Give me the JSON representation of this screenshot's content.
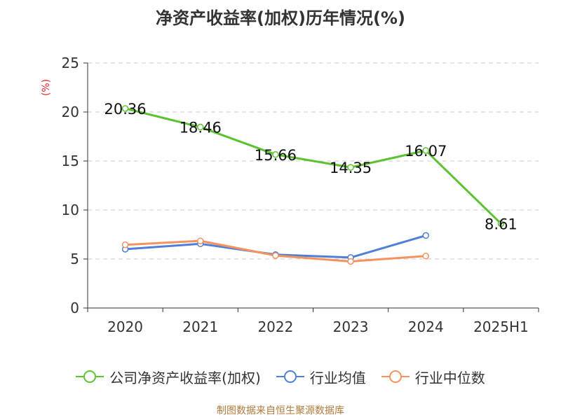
{
  "chart_data": {
    "type": "line",
    "title": "净资产收益率(加权)历年情况(%)",
    "ylabel": "(%)",
    "categories": [
      "2020",
      "2021",
      "2022",
      "2023",
      "2024",
      "2025H1"
    ],
    "ylim": [
      0,
      25
    ],
    "yticks": [
      0,
      5,
      10,
      15,
      20,
      25
    ],
    "grid": true,
    "legend_position": "bottom",
    "series": [
      {
        "name": "公司净资产收益率(加权)",
        "color": "#5cc22f",
        "values": [
          20.36,
          18.46,
          15.66,
          14.35,
          16.07,
          8.61
        ],
        "labels": [
          "20.36",
          "18.46",
          "15.66",
          "14.35",
          "16.07",
          "8.61"
        ]
      },
      {
        "name": "行业均值",
        "color": "#4f7fd8",
        "values": [
          6.0,
          6.55,
          5.45,
          5.15,
          7.4,
          null
        ]
      },
      {
        "name": "行业中位数",
        "color": "#f5925e",
        "values": [
          6.45,
          6.85,
          5.35,
          4.75,
          5.3,
          null
        ]
      }
    ]
  },
  "source": "制图数据来自恒生聚源数据库"
}
